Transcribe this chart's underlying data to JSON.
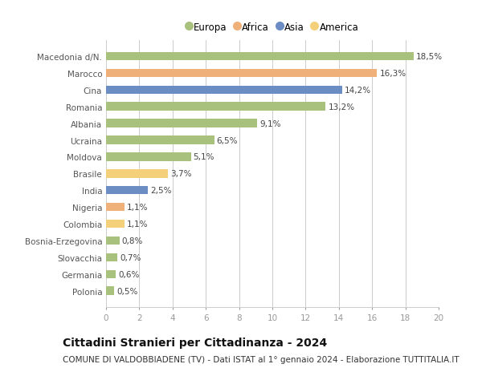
{
  "categories": [
    "Macedonia d/N.",
    "Marocco",
    "Cina",
    "Romania",
    "Albania",
    "Ucraina",
    "Moldova",
    "Brasile",
    "India",
    "Nigeria",
    "Colombia",
    "Bosnia-Erzegovina",
    "Slovacchia",
    "Germania",
    "Polonia"
  ],
  "values": [
    18.5,
    16.3,
    14.2,
    13.2,
    9.1,
    6.5,
    5.1,
    3.7,
    2.5,
    1.1,
    1.1,
    0.8,
    0.7,
    0.6,
    0.5
  ],
  "labels": [
    "18,5%",
    "16,3%",
    "14,2%",
    "13,2%",
    "9,1%",
    "6,5%",
    "5,1%",
    "3,7%",
    "2,5%",
    "1,1%",
    "1,1%",
    "0,8%",
    "0,7%",
    "0,6%",
    "0,5%"
  ],
  "colors": [
    "#a8c17c",
    "#f0b07a",
    "#6b8dc4",
    "#a8c17c",
    "#a8c17c",
    "#a8c17c",
    "#a8c17c",
    "#f5d07a",
    "#6b8dc4",
    "#f0b07a",
    "#f5d07a",
    "#a8c17c",
    "#a8c17c",
    "#a8c17c",
    "#a8c17c"
  ],
  "legend_labels": [
    "Europa",
    "Africa",
    "Asia",
    "America"
  ],
  "legend_colors": [
    "#a8c17c",
    "#f0b07a",
    "#6b8dc4",
    "#f5d07a"
  ],
  "xlim": [
    0,
    20
  ],
  "xticks": [
    0,
    2,
    4,
    6,
    8,
    10,
    12,
    14,
    16,
    18,
    20
  ],
  "title": "Cittadini Stranieri per Cittadinanza - 2024",
  "subtitle": "COMUNE DI VALDOBBIADENE (TV) - Dati ISTAT al 1° gennaio 2024 - Elaborazione TUTTITALIA.IT",
  "bg_color": "#ffffff",
  "bar_height": 0.5,
  "grid_color": "#cccccc",
  "label_fontsize": 7.5,
  "value_fontsize": 7.5,
  "title_fontsize": 10,
  "subtitle_fontsize": 7.5
}
